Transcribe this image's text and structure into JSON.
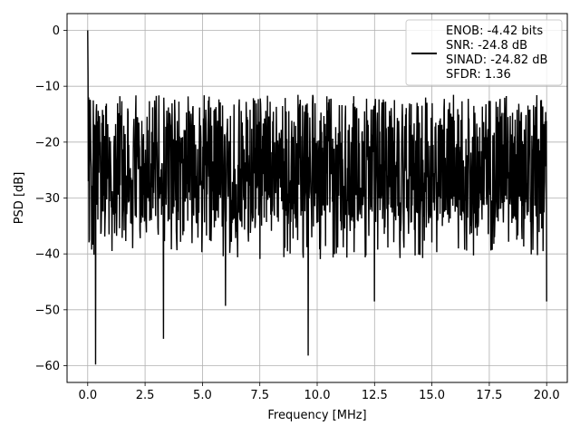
{
  "chart_data": {
    "type": "line",
    "title": "",
    "xlabel": "Frequency [MHz]",
    "ylabel": "PSD [dB]",
    "xlim": [
      -0.9,
      20.9
    ],
    "ylim": [
      -63.0,
      3.0
    ],
    "xticks": [
      0.0,
      2.5,
      5.0,
      7.5,
      10.0,
      12.5,
      15.0,
      17.5,
      20.0
    ],
    "xtick_labels": [
      "0.0",
      "2.5",
      "5.0",
      "7.5",
      "10.0",
      "12.5",
      "15.0",
      "17.5",
      "20.0"
    ],
    "yticks": [
      0,
      -10,
      -20,
      -30,
      -40,
      -50,
      -60
    ],
    "ytick_labels": [
      "0",
      "−10",
      "−20",
      "−30",
      "−40",
      "−50",
      "−60"
    ],
    "grid": true,
    "legend_position": "top-right",
    "series": [
      {
        "name": "ENOB: -4.42 bits\nSNR: -24.8 dB\nSINAD: -24.82 dB\nSFDR: 1.36",
        "legend_lines": [
          "ENOB: -4.42 bits",
          "SNR: -24.8 dB",
          "SINAD: -24.82 dB",
          "SFDR: 1.36"
        ],
        "color": "#000000",
        "x_range": [
          0.0,
          20.0
        ],
        "peak": {
          "x": 0.0,
          "y": 0.0
        },
        "band_center": -23.0,
        "upper_envelope": -11.5,
        "deep_notches": [
          {
            "x": 0.35,
            "y": -59.8
          },
          {
            "x": 3.3,
            "y": -55.2
          },
          {
            "x": 9.6,
            "y": -58.2
          },
          {
            "x": 12.5,
            "y": -48.5
          },
          {
            "x": 20.0,
            "y": -48.5
          },
          {
            "x": 6.0,
            "y": -49.3
          }
        ]
      }
    ]
  },
  "colors": {
    "line": "#000000",
    "grid": "#b0b0b0",
    "background": "#ffffff"
  }
}
